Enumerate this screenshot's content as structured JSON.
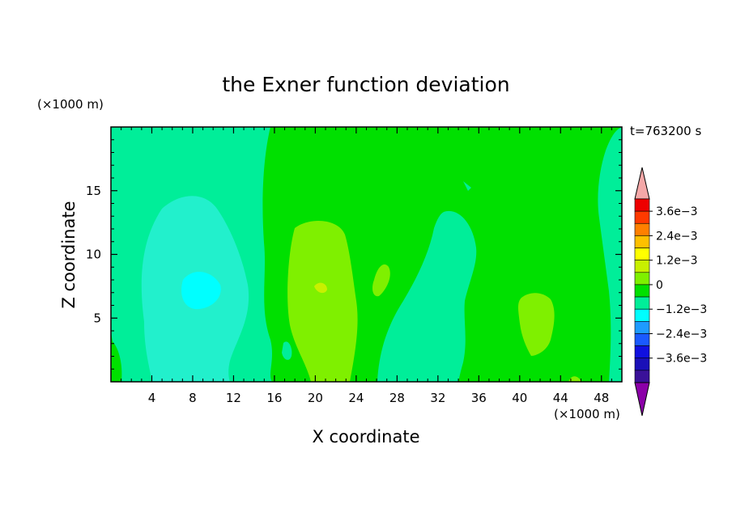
{
  "chart_data": {
    "type": "heatmap",
    "title": "the Exner function deviation",
    "xlabel": "X coordinate",
    "ylabel": "Z coordinate",
    "x_unit": "(×1000 m)",
    "y_unit": "(×1000 m)",
    "time_label": "t=763200 s",
    "xlim": [
      0,
      50
    ],
    "ylim": [
      0,
      20
    ],
    "x_ticks": [
      4,
      8,
      12,
      16,
      20,
      24,
      28,
      32,
      36,
      40,
      44,
      48
    ],
    "y_ticks": [
      5,
      10,
      15
    ],
    "colorbar": {
      "levels": [
        -0.0042,
        -0.0036,
        -0.003,
        -0.0024,
        -0.0018,
        -0.0012,
        -0.0006,
        0,
        0.0006,
        0.0012,
        0.0018,
        0.0024,
        0.003,
        0.0036,
        0.0042
      ],
      "tick_labels": [
        "3.6e−3",
        "2.4e−3",
        "1.2e−3",
        "0",
        "−1.2e−3",
        "−2.4e−3",
        "−3.6e−3"
      ],
      "colors": [
        "#8b00a8",
        "#3a1199",
        "#1a10b8",
        "#1010e0",
        "#1a5aff",
        "#1e9bff",
        "#00ffff",
        "#00ee99",
        "#00e000",
        "#7ff000",
        "#c8f000",
        "#ffff00",
        "#ffc000",
        "#ff8000",
        "#ff3a00",
        "#ee0000",
        "#f4a8a8"
      ]
    },
    "regions": [
      {
        "name": "background",
        "level": "0 to 0.6e-3",
        "color": "#00e000"
      },
      {
        "name": "left band",
        "level": "-0.6e-3 to 0",
        "color": "#00ee99",
        "x_range": [
          0,
          16
        ]
      },
      {
        "name": "left cyan cell",
        "level": "-1.2e-3 to -0.6e-3",
        "color": "#22f0cc",
        "center": [
          9,
          8
        ]
      },
      {
        "name": "left core",
        "level": "< -1.2e-3",
        "color": "#00ffff",
        "center": [
          8.5,
          7.5
        ]
      },
      {
        "name": "central yellow-green cell",
        "level": "0.6e-3 to 1.2e-3",
        "color": "#7ff000",
        "center": [
          21,
          7
        ]
      },
      {
        "name": "middle band",
        "level": "-0.6e-3 to 0",
        "color": "#00ee99",
        "x_range": [
          25,
          35
        ]
      },
      {
        "name": "right yellow-green cell",
        "level": "0.6e-3 to 1.2e-3",
        "color": "#7ff000",
        "center": [
          42,
          5
        ]
      },
      {
        "name": "right edge band",
        "level": "-0.6e-3 to 0",
        "color": "#00ee99",
        "x_range": [
          47,
          50
        ]
      }
    ]
  }
}
